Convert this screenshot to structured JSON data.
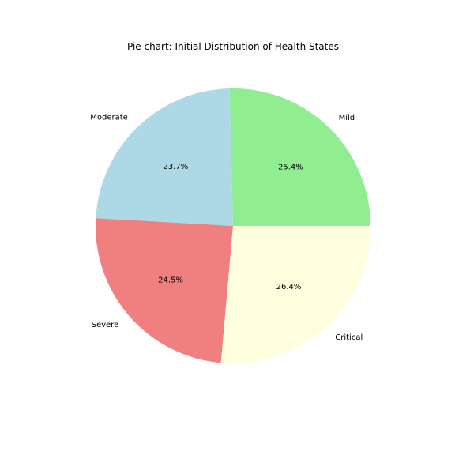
{
  "chart_data": {
    "type": "pie",
    "title": "Pie chart: Initial Distribution of Health States",
    "start_angle_deg": 0,
    "direction": "counterclockwise",
    "slices": [
      {
        "label": "Mild",
        "value": 25.4,
        "pct_label": "25.4%",
        "color": "#90ee90"
      },
      {
        "label": "Moderate",
        "value": 23.7,
        "pct_label": "23.7%",
        "color": "#add8e6"
      },
      {
        "label": "Severe",
        "value": 24.5,
        "pct_label": "24.5%",
        "color": "#f08080"
      },
      {
        "label": "Critical",
        "value": 26.4,
        "pct_label": "26.4%",
        "color": "#ffffe0"
      }
    ]
  }
}
